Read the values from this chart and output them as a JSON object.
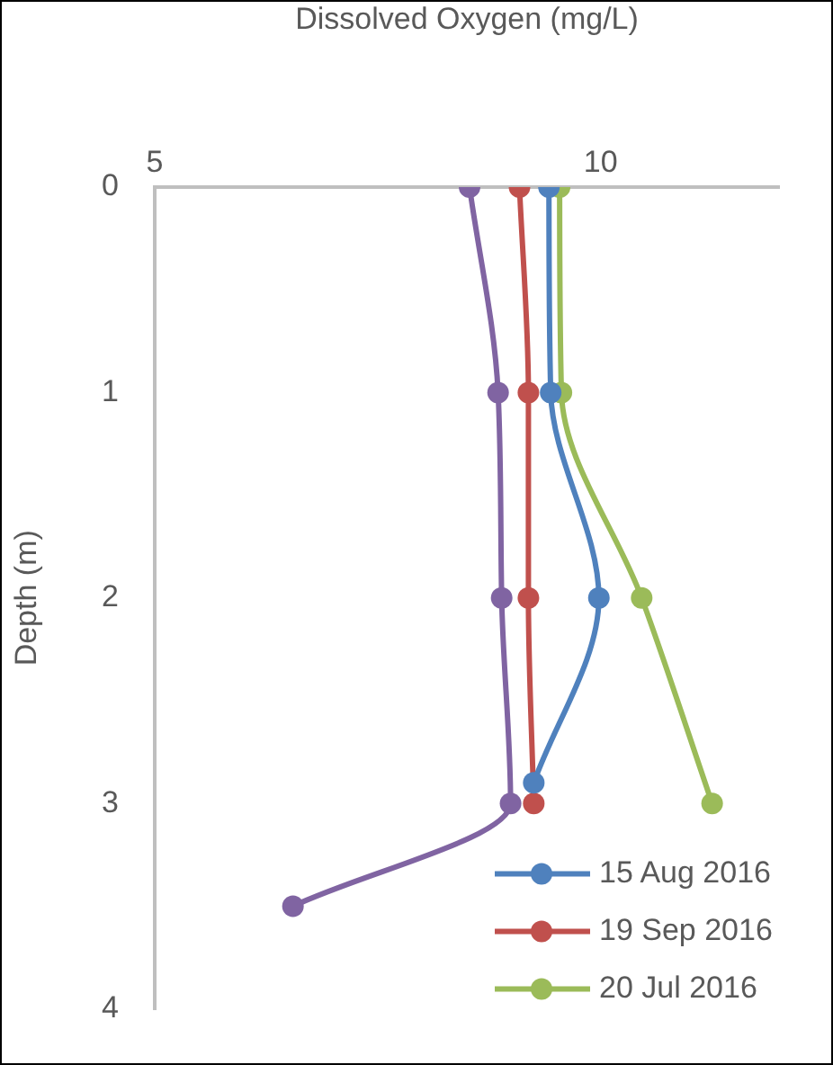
{
  "chart_data": {
    "type": "line",
    "xlabel": "Dissolved Oxygen (mg/L)",
    "ylabel": "Depth (m)",
    "xlim": [
      5,
      12
    ],
    "xticks": [
      5,
      10
    ],
    "ylim": [
      4,
      0
    ],
    "yticks": [
      0,
      1,
      2,
      3,
      4
    ],
    "grid": false,
    "legend": "bottom right",
    "marker": "circle",
    "line_style": "solid",
    "series": [
      {
        "name": "15 Aug 2016",
        "color": "#4f81bd",
        "x": [
          9.42,
          9.44,
          9.98,
          9.25
        ],
        "values": [
          0,
          1,
          2,
          2.9
        ]
      },
      {
        "name": "19 Sep 2016",
        "color": "#c0504d",
        "x": [
          9.09,
          9.19,
          9.19,
          9.25
        ],
        "values": [
          0,
          1,
          2,
          3
        ]
      },
      {
        "name": "20 Jul 2016",
        "color": "#9bbb59",
        "x": [
          9.54,
          9.56,
          10.46,
          11.25
        ],
        "values": [
          0,
          1,
          2,
          3
        ]
      },
      {
        "color": "#8064a2",
        "x": [
          8.53,
          8.85,
          8.89,
          8.99,
          6.55
        ],
        "values": [
          0,
          1,
          2,
          3,
          3.5
        ]
      }
    ]
  }
}
